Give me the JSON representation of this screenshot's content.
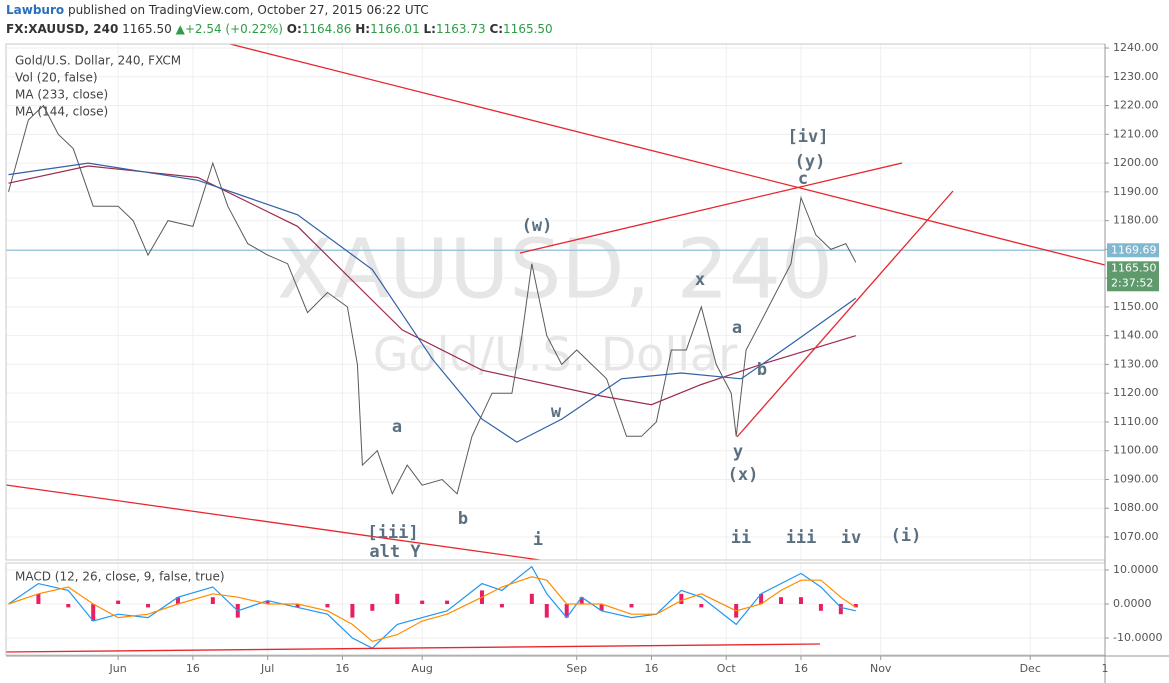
{
  "header": {
    "author": "Lawburo",
    "published": "published on TradingView.com, October 27, 2015 06:22 UTC",
    "symbol": "FX:XAUUSD, 240",
    "last": "1165.50",
    "change": "+2.54 (+0.22%)",
    "o_label": "O:",
    "o": "1164.86",
    "h_label": "H:",
    "h": "1166.01",
    "l_label": "L:",
    "l": "1163.73",
    "c_label": "C:",
    "c": "1165.50"
  },
  "chart_data": [
    {
      "type": "line",
      "title": "Gold/U.S. Dollar, 240, FXCM",
      "study": "Vol (20, false)",
      "watermark": "XAUUSD, 240",
      "watermark_sub": "Gold/U.S. Dollar",
      "xlim": [
        129.5,
        350
      ],
      "ylim": [
        1062,
        1241.4
      ],
      "grid": true,
      "yticks": [
        {
          "value": 1070,
          "label": "1070.00"
        },
        {
          "value": 1080,
          "label": "1080.00"
        },
        {
          "value": 1090,
          "label": "1090.00"
        },
        {
          "value": 1100,
          "label": "1100.00"
        },
        {
          "value": 1110,
          "label": "1110.00"
        },
        {
          "value": 1120,
          "label": "1120.00"
        },
        {
          "value": 1130,
          "label": "1130.00"
        },
        {
          "value": 1140,
          "label": "1140.00"
        },
        {
          "value": 1150,
          "label": "1150.00"
        },
        {
          "value": 1160,
          "label": "1160.00"
        },
        {
          "value": 1170,
          "label": "1170.00"
        },
        {
          "value": 1180,
          "label": "1180.00"
        },
        {
          "value": 1190,
          "label": "1190.00"
        },
        {
          "value": 1200,
          "label": "1200.00"
        },
        {
          "value": 1210,
          "label": "1210.00"
        },
        {
          "value": 1220,
          "label": "1220.00"
        },
        {
          "value": 1230,
          "label": "1230.00"
        },
        {
          "value": 1240,
          "label": "1240.00"
        }
      ],
      "price_line": {
        "value": 1169.69,
        "label": "1169.69"
      },
      "last_price": {
        "value": 1165.5,
        "label": "1165.50"
      },
      "countdown": "2:37:52",
      "series": [
        {
          "color": "#5a5a5a",
          "x": [
            130,
            134,
            137,
            140,
            143,
            147,
            152,
            155,
            158,
            162,
            167,
            171,
            174,
            178,
            182,
            186,
            190,
            194,
            198,
            200,
            201,
            204,
            207,
            210,
            213,
            217,
            220,
            223,
            227,
            231,
            233,
            235,
            238,
            241,
            244,
            247,
            250,
            254,
            257,
            260,
            263,
            266,
            269,
            272,
            275,
            276,
            278,
            281,
            284,
            287,
            289,
            292,
            295,
            298,
            300
          ],
          "values": [
            1190,
            1215,
            1220,
            1210,
            1205,
            1185,
            1185,
            1180,
            1168,
            1180,
            1178,
            1200,
            1185,
            1172,
            1168,
            1165,
            1148,
            1155,
            1150,
            1130,
            1095,
            1100,
            1085,
            1095,
            1088,
            1090,
            1085,
            1105,
            1120,
            1120,
            1140,
            1165,
            1140,
            1130,
            1135,
            1130,
            1125,
            1105,
            1105,
            1110,
            1135,
            1135,
            1150,
            1130,
            1120,
            1105,
            1135,
            1145,
            1155,
            1165,
            1188,
            1175,
            1170,
            1172,
            1165.5
          ]
        },
        {
          "name": "MA (233, close)",
          "color": "#9c2b4e",
          "x": [
            130,
            146,
            168,
            188,
            209,
            225,
            233,
            249,
            259,
            269,
            281,
            300
          ],
          "values": [
            1193,
            1199,
            1195,
            1178,
            1142,
            1128,
            1125,
            1119,
            1116,
            1123,
            1130,
            1140
          ]
        },
        {
          "name": "MA (144, close)",
          "color": "#3060a8",
          "x": [
            130,
            146,
            168,
            188,
            203,
            215,
            225,
            232,
            241,
            253,
            265,
            277,
            287,
            300
          ],
          "values": [
            1196,
            1200,
            1194,
            1182,
            1163,
            1132,
            1111,
            1103,
            1111,
            1125,
            1127,
            1125,
            1137,
            1153
          ]
        }
      ],
      "annotations": [
        "[iv]",
        "(y)",
        "c",
        "(w)",
        "x",
        "a",
        "b",
        "w",
        "y",
        "(x)",
        "a",
        "b",
        "[iii]",
        "alt Y",
        "i",
        "ii",
        "iii",
        "iv",
        "(i)"
      ]
    },
    {
      "type": "macd",
      "title": "MACD (12, 26, close, 9, false, true)",
      "xlim": [
        129.5,
        350
      ],
      "ylim": [
        -15,
        12.06
      ],
      "grid": true,
      "yticks": [
        {
          "value": 10,
          "label": "10.0000"
        },
        {
          "value": 0,
          "label": "0.0000"
        },
        {
          "value": -10,
          "label": "-10.0000"
        }
      ],
      "xticks": [
        {
          "value": 152,
          "label": "Jun"
        },
        {
          "value": 167,
          "label": "16"
        },
        {
          "value": 182,
          "label": "Jul"
        },
        {
          "value": 197,
          "label": "16"
        },
        {
          "value": 213,
          "label": "Aug"
        },
        {
          "value": 244,
          "label": "Sep"
        },
        {
          "value": 259,
          "label": "16"
        },
        {
          "value": 274,
          "label": "Oct"
        },
        {
          "value": 289,
          "label": "16"
        },
        {
          "value": 305,
          "label": "Nov"
        },
        {
          "value": 335,
          "label": "Dec"
        },
        {
          "value": 350,
          "label": "1"
        }
      ],
      "x": [
        130,
        136,
        142,
        147,
        152,
        158,
        164,
        171,
        176,
        182,
        188,
        194,
        199,
        203,
        208,
        213,
        218,
        225,
        229,
        235,
        238,
        242,
        245,
        249,
        255,
        260,
        265,
        269,
        276,
        281,
        285,
        289,
        293,
        297,
        300
      ],
      "series": [
        {
          "style": "histogram",
          "color": "#e91e63",
          "values": [
            0,
            3,
            -1,
            -5,
            1,
            -1,
            2,
            2,
            -4,
            1,
            -1,
            -1,
            -4,
            -2,
            3,
            1,
            1,
            4,
            -1,
            3,
            -4,
            -4,
            2,
            -2,
            -1,
            0,
            3,
            -1,
            -4,
            3,
            2,
            2,
            -2,
            -3,
            -1
          ]
        },
        {
          "style": "line",
          "color": "#2196f3",
          "values": [
            0,
            6,
            4,
            -5,
            -3,
            -4,
            2,
            5,
            -2,
            1,
            -1,
            -3,
            -10,
            -13,
            -6,
            -4,
            -2,
            6,
            4,
            11,
            3,
            -4,
            2,
            -2,
            -4,
            -3,
            4,
            2,
            -6,
            3,
            6,
            9,
            5,
            -1,
            -2
          ]
        },
        {
          "style": "line",
          "color": "#ff8c00",
          "values": [
            0,
            3,
            5,
            0,
            -4,
            -3,
            0,
            3,
            2,
            0,
            0,
            -2,
            -6,
            -11,
            -9,
            -5,
            -3,
            2,
            5,
            8,
            7,
            0,
            0,
            0,
            -3,
            -3,
            1,
            3,
            -2,
            0,
            4,
            7,
            7,
            2,
            -1
          ]
        }
      ]
    }
  ]
}
